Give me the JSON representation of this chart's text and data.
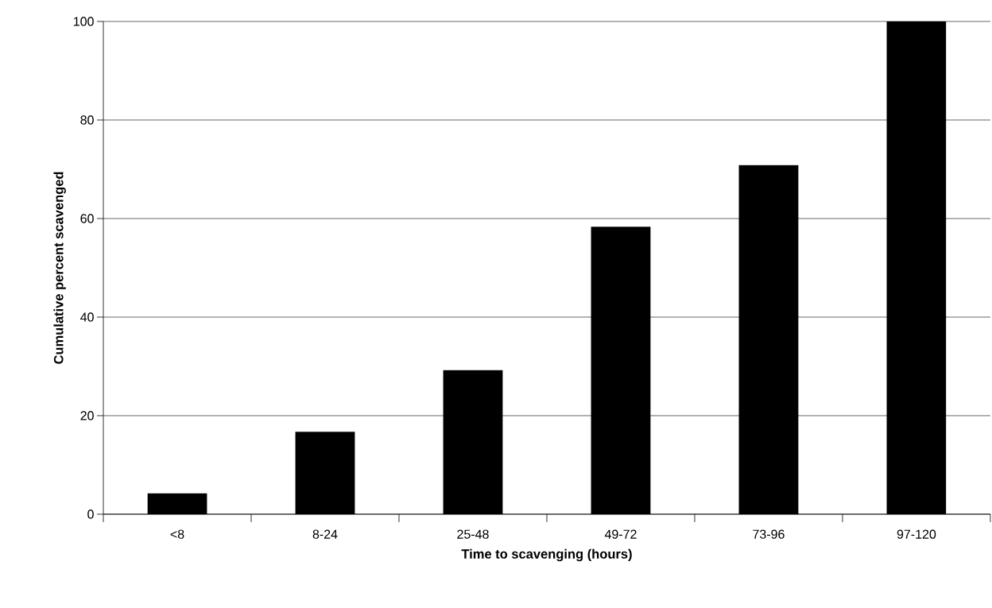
{
  "chart_data": {
    "type": "bar",
    "xlabel": "Time to scavenging (hours)",
    "ylabel": "Cumulative percent scavenged",
    "categories": [
      "<8",
      "8-24",
      "25-48",
      "49-72",
      "73-96",
      "97-120"
    ],
    "values": [
      4.2,
      16.7,
      29.2,
      58.3,
      70.8,
      100
    ],
    "color": "#000000",
    "ylim": [
      0,
      100
    ],
    "yticks": [
      0,
      20,
      40,
      60,
      80,
      100
    ],
    "grid": "y"
  }
}
